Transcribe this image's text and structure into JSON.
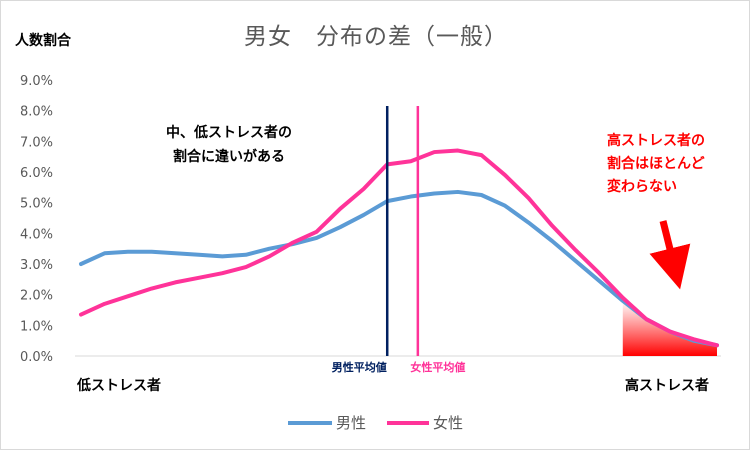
{
  "chart_data": {
    "type": "line",
    "title": "男女　分布の差（一般）",
    "ylabel": "人数割合",
    "ylim": [
      0,
      9
    ],
    "y_ticks": [
      "0.0%",
      "1.0%",
      "2.0%",
      "3.0%",
      "4.0%",
      "5.0%",
      "6.0%",
      "7.0%",
      "8.0%",
      "9.0%"
    ],
    "x_left_label": "低ストレス者",
    "x_right_label": "高ストレス者",
    "x": [
      1,
      2,
      3,
      4,
      5,
      6,
      7,
      8,
      9,
      10,
      11,
      12,
      13,
      14,
      15,
      16,
      17,
      18,
      19,
      20,
      21,
      22,
      23,
      24,
      25,
      26,
      27,
      28
    ],
    "series": [
      {
        "name": "男性",
        "color": "#5b9bd5",
        "values": [
          3.0,
          3.35,
          3.4,
          3.4,
          3.35,
          3.3,
          3.25,
          3.3,
          3.5,
          3.65,
          3.85,
          4.2,
          4.6,
          5.05,
          5.2,
          5.3,
          5.35,
          5.25,
          4.9,
          4.35,
          3.75,
          3.1,
          2.45,
          1.8,
          1.2,
          0.8,
          0.5,
          0.35
        ]
      },
      {
        "name": "女性",
        "color": "#ff3399",
        "values": [
          1.35,
          1.7,
          1.95,
          2.2,
          2.4,
          2.55,
          2.7,
          2.9,
          3.25,
          3.7,
          4.05,
          4.8,
          5.45,
          6.25,
          6.35,
          6.65,
          6.7,
          6.55,
          5.9,
          5.15,
          4.25,
          3.45,
          2.7,
          1.9,
          1.2,
          0.8,
          0.55,
          0.35
        ]
      }
    ],
    "reference_lines": [
      {
        "label": "男性平均値",
        "x": 14.0,
        "color": "#002060"
      },
      {
        "label": "女性平均値",
        "x": 15.3,
        "color": "#ff3399"
      }
    ],
    "annotations": {
      "middle": [
        "中、低ストレス者の",
        "割合に違いがある"
      ],
      "high": [
        "高ストレス者の",
        "割合はほとんど",
        "変わらない"
      ]
    },
    "highlight": {
      "from_x": 24,
      "to_x": 28,
      "color": "#ff0000"
    },
    "grid": false,
    "legend": "bottom"
  }
}
